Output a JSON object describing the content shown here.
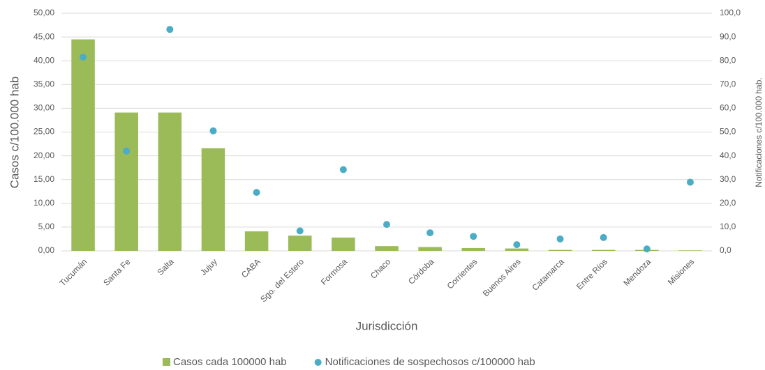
{
  "chart_data": {
    "type": "bar",
    "x_label": "Jurisdicción",
    "y_label": "Casos c/100.000 hab",
    "y2_label": "Notificaciones c/100.000 hab.",
    "categories": [
      "Tucumán",
      "Santa Fe",
      "Salta",
      "Jujuy",
      "CABA",
      "Sgo. del Estero",
      "Formosa",
      "Chaco",
      "Córdoba",
      "Corrientes",
      "Buenos Aires",
      "Catamarca",
      "Entre Ríos",
      "Mendoza",
      "Misiones"
    ],
    "series": [
      {
        "name": "Casos cada 100000 hab",
        "type": "bar",
        "color": "#9bbb59",
        "values": [
          44.5,
          29.1,
          29.1,
          21.6,
          4.1,
          3.2,
          2.8,
          1.0,
          0.8,
          0.6,
          0.5,
          0.2,
          0.2,
          0.2,
          0.1
        ]
      },
      {
        "name": "Notificaciones de sospechosos c/100000 hab",
        "type": "scatter",
        "axis": "y2",
        "color": "#4bacc6",
        "values": [
          81.5,
          42.0,
          93.2,
          50.5,
          24.6,
          8.4,
          34.2,
          11.1,
          7.6,
          6.1,
          2.6,
          5.0,
          5.6,
          0.8,
          28.9
        ]
      }
    ],
    "ylim": [
      0,
      50
    ],
    "yticks": [
      {
        "value": 0,
        "label": "0,00"
      },
      {
        "value": 5,
        "label": "5,00"
      },
      {
        "value": 10,
        "label": "10,00"
      },
      {
        "value": 15,
        "label": "15,00"
      },
      {
        "value": 20,
        "label": "20,00"
      },
      {
        "value": 25,
        "label": "25,00"
      },
      {
        "value": 30,
        "label": "30,00"
      },
      {
        "value": 35,
        "label": "35,00"
      },
      {
        "value": 40,
        "label": "40,00"
      },
      {
        "value": 45,
        "label": "45,00"
      },
      {
        "value": 50,
        "label": "50,00"
      }
    ],
    "y2lim": [
      0,
      100
    ],
    "y2ticks": [
      {
        "value": 0,
        "label": "0,0"
      },
      {
        "value": 10,
        "label": "10,0"
      },
      {
        "value": 20,
        "label": "20,0"
      },
      {
        "value": 30,
        "label": "30,0"
      },
      {
        "value": 40,
        "label": "40,0"
      },
      {
        "value": 50,
        "label": "50,0"
      },
      {
        "value": 60,
        "label": "60,0"
      },
      {
        "value": 70,
        "label": "70,0"
      },
      {
        "value": 80,
        "label": "80,0"
      },
      {
        "value": 90,
        "label": "90,0"
      },
      {
        "value": 100,
        "label": "100,0"
      }
    ],
    "grid": true,
    "legend": "bottom"
  }
}
